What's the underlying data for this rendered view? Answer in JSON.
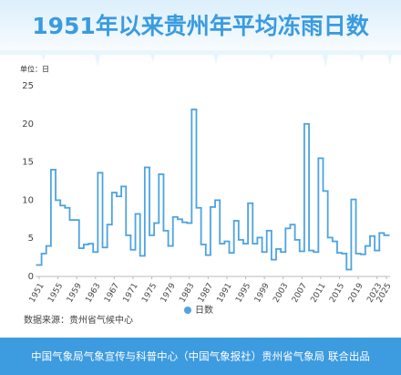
{
  "chart_data": {
    "type": "step",
    "title": "1951年以来贵州年平均冻雨日数",
    "unit": "单位：日",
    "source": "数据来源：贵州省气候中心",
    "footer": "中国气象局气象宣传与科普中心（中国气象报社）贵州省气象局 联合出品",
    "x": [
      1951,
      1952,
      1953,
      1954,
      1955,
      1956,
      1957,
      1958,
      1959,
      1960,
      1961,
      1962,
      1963,
      1964,
      1965,
      1966,
      1967,
      1968,
      1969,
      1970,
      1971,
      1972,
      1973,
      1974,
      1975,
      1976,
      1977,
      1978,
      1979,
      1980,
      1981,
      1982,
      1983,
      1984,
      1985,
      1986,
      1987,
      1988,
      1989,
      1990,
      1991,
      1992,
      1993,
      1994,
      1995,
      1996,
      1997,
      1998,
      1999,
      2000,
      2001,
      2002,
      2003,
      2004,
      2005,
      2006,
      2007,
      2008,
      2009,
      2010,
      2011,
      2012,
      2013,
      2014,
      2015,
      2016,
      2017,
      2018,
      2019,
      2020,
      2021,
      2022,
      2023,
      2024,
      2025
    ],
    "series": [
      {
        "name": "日数",
        "color": "#4ea3e0",
        "values": [
          1.5,
          3,
          4,
          14,
          10,
          9.3,
          9,
          7.4,
          7.4,
          3.7,
          4.2,
          4.3,
          3.2,
          13.6,
          3.8,
          6.8,
          11,
          10.5,
          11.8,
          5.4,
          3.5,
          8.2,
          2.7,
          14.3,
          5.4,
          7,
          13.4,
          6,
          4,
          7.8,
          7.5,
          7.1,
          7,
          21.9,
          9,
          4.2,
          2.8,
          9.1,
          10,
          4.3,
          4.6,
          3.1,
          7.3,
          4.8,
          4.3,
          9.6,
          4.3,
          5.1,
          3.2,
          6,
          2.2,
          3.6,
          3.2,
          6.3,
          6.8,
          4.8,
          3.3,
          20,
          3.4,
          3.2,
          15.5,
          11.2,
          5.1,
          4.6,
          3.1,
          3,
          0.9,
          10.1,
          3,
          2.9,
          4,
          5.3,
          3.4,
          5.7,
          5.4
        ]
      }
    ],
    "xlim": [
      1951,
      2025
    ],
    "xticks": [
      1951,
      1955,
      1959,
      1963,
      1967,
      1971,
      1975,
      1979,
      1983,
      1987,
      1991,
      1995,
      1999,
      2003,
      2007,
      2011,
      2015,
      2019,
      2023,
      2025
    ],
    "ylim": [
      0,
      25
    ],
    "yticks": [
      0,
      5,
      10,
      15,
      20,
      25
    ],
    "grid": false
  }
}
